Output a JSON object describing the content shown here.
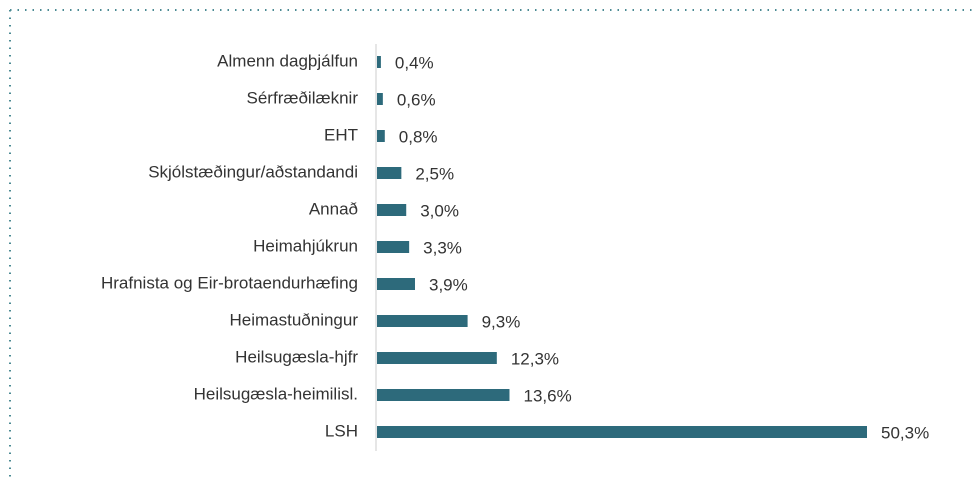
{
  "chart_data": {
    "type": "bar",
    "orientation": "horizontal",
    "categories": [
      "Almenn dagþjálfun",
      "Sérfræðilæknir",
      "EHT",
      "Skjólstæðingur/aðstandandi",
      "Annað",
      "Heimahjúkrun",
      "Hrafnista og Eir-brotaendurhæfing",
      "Heimastuðningur",
      "Heilsugæsla-hjfr",
      "Heilsugæsla-heimilisl.",
      "LSH"
    ],
    "values": [
      0.4,
      0.6,
      0.8,
      2.5,
      3.0,
      3.3,
      3.9,
      9.3,
      12.3,
      13.6,
      50.3
    ],
    "value_labels": [
      "0,4%",
      "0,6%",
      "0,8%",
      "2,5%",
      "3,0%",
      "3,3%",
      "3,9%",
      "9,3%",
      "12,3%",
      "13,6%",
      "50,3%"
    ],
    "color": "#2d6a7b"
  }
}
